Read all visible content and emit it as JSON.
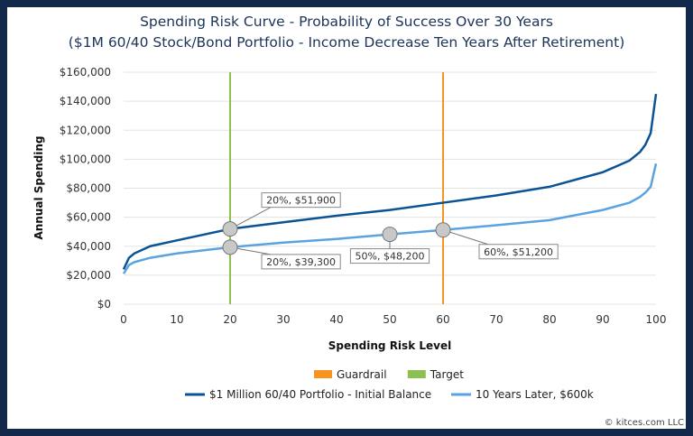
{
  "chart_data": {
    "type": "line",
    "title": "Spending Risk Curve - Probability of Success Over 30 Years",
    "subtitle": "($1M 60/40 Stock/Bond Portfolio - Income Decrease Ten Years After Retirement)",
    "xlabel": "Spending Risk Level",
    "ylabel": "Annual Spending",
    "xlim": [
      0,
      100
    ],
    "ylim": [
      0,
      160000
    ],
    "xticks": [
      "0",
      "10",
      "20",
      "30",
      "40",
      "50",
      "60",
      "70",
      "80",
      "90",
      "100"
    ],
    "yticks": [
      "$0",
      "$20,000",
      "$40,000",
      "$60,000",
      "$80,000",
      "$100,000",
      "$120,000",
      "$140,000",
      "$160,000"
    ],
    "grid": "horizontal",
    "legend_placement": "bottom",
    "x": [
      0,
      1,
      2,
      5,
      10,
      20,
      30,
      40,
      50,
      60,
      70,
      80,
      90,
      95,
      97,
      98,
      99,
      100
    ],
    "series": [
      {
        "name": "$1 Million 60/40 Portfolio - Initial Balance",
        "color": "#0b5394",
        "values": [
          24000,
          32000,
          35000,
          40000,
          44000,
          51900,
          56500,
          61000,
          65000,
          70000,
          75000,
          81000,
          91000,
          99000,
          105000,
          110000,
          118000,
          145000
        ]
      },
      {
        "name": "10 Years Later, $600k",
        "color": "#5ba3e0",
        "values": [
          21000,
          27000,
          29000,
          32000,
          35000,
          39300,
          42500,
          45000,
          48200,
          51200,
          54500,
          58000,
          65000,
          70000,
          74000,
          77000,
          81000,
          97000
        ]
      }
    ],
    "vertical_lines": [
      {
        "name": "Guardrail",
        "x": 60,
        "color": "#f7941d"
      },
      {
        "name": "Target",
        "x": 20,
        "color": "#8cc152"
      }
    ],
    "annotations": [
      {
        "x": 20,
        "y": 51900,
        "label": "20%, $51,900"
      },
      {
        "x": 20,
        "y": 39300,
        "label": "20%, $39,300"
      },
      {
        "x": 50,
        "y": 48200,
        "label": "50%, $48,200"
      },
      {
        "x": 60,
        "y": 51200,
        "label": "60%, $51,200"
      }
    ]
  },
  "footer": "© kitces.com LLC"
}
